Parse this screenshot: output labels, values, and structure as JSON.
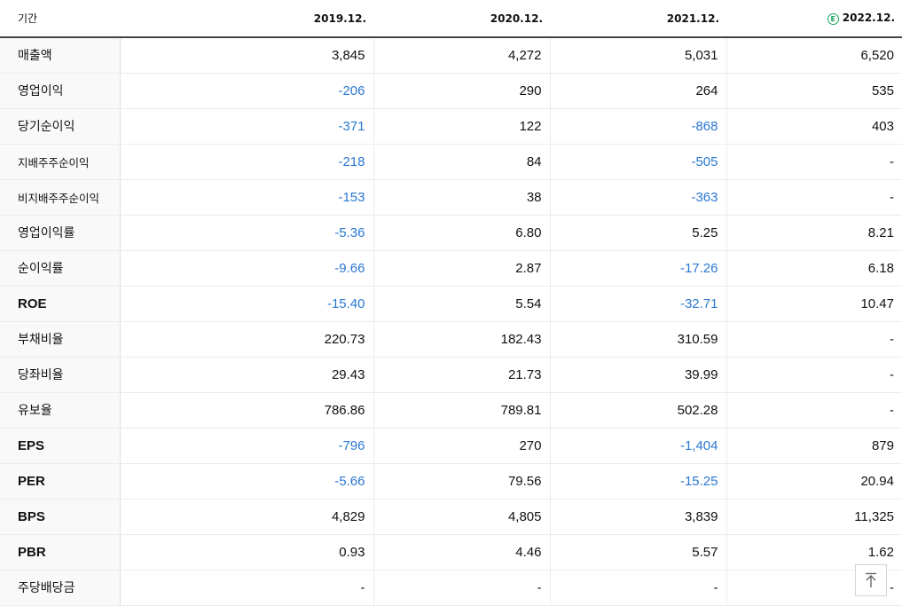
{
  "header": {
    "label": "기간",
    "periods": [
      "2019.12.",
      "2020.12.",
      "2021.12.",
      "2022.12."
    ],
    "estimate_mark": "E"
  },
  "rows": [
    {
      "label": "매출액",
      "values": [
        "3,845",
        "4,272",
        "5,031",
        "6,520"
      ]
    },
    {
      "label": "영업이익",
      "values": [
        "-206",
        "290",
        "264",
        "535"
      ]
    },
    {
      "label": "당기순이익",
      "values": [
        "-371",
        "122",
        "-868",
        "403"
      ]
    },
    {
      "label": "지배주주순이익",
      "values": [
        "-218",
        "84",
        "-505",
        "-"
      ]
    },
    {
      "label": "비지배주주순이익",
      "values": [
        "-153",
        "38",
        "-363",
        "-"
      ]
    },
    {
      "label": "영업이익률",
      "values": [
        "-5.36",
        "6.80",
        "5.25",
        "8.21"
      ]
    },
    {
      "label": "순이익률",
      "values": [
        "-9.66",
        "2.87",
        "-17.26",
        "6.18"
      ]
    },
    {
      "label": "ROE",
      "values": [
        "-15.40",
        "5.54",
        "-32.71",
        "10.47"
      ]
    },
    {
      "label": "부채비율",
      "values": [
        "220.73",
        "182.43",
        "310.59",
        "-"
      ]
    },
    {
      "label": "당좌비율",
      "values": [
        "29.43",
        "21.73",
        "39.99",
        "-"
      ]
    },
    {
      "label": "유보율",
      "values": [
        "786.86",
        "789.81",
        "502.28",
        "-"
      ]
    },
    {
      "label": "EPS",
      "values": [
        "-796",
        "270",
        "-1,404",
        "879"
      ]
    },
    {
      "label": "PER",
      "values": [
        "-5.66",
        "79.56",
        "-15.25",
        "20.94"
      ]
    },
    {
      "label": "BPS",
      "values": [
        "4,829",
        "4,805",
        "3,839",
        "11,325"
      ]
    },
    {
      "label": "PBR",
      "values": [
        "0.93",
        "4.46",
        "5.57",
        "1.62"
      ]
    },
    {
      "label": "주당배당금",
      "values": [
        "-",
        "-",
        "-",
        "-"
      ]
    }
  ],
  "colors": {
    "negative": "#2a78d2",
    "estimate": "#1aa35c"
  },
  "scroll_top_icon": "arrow-up-to-top-icon"
}
